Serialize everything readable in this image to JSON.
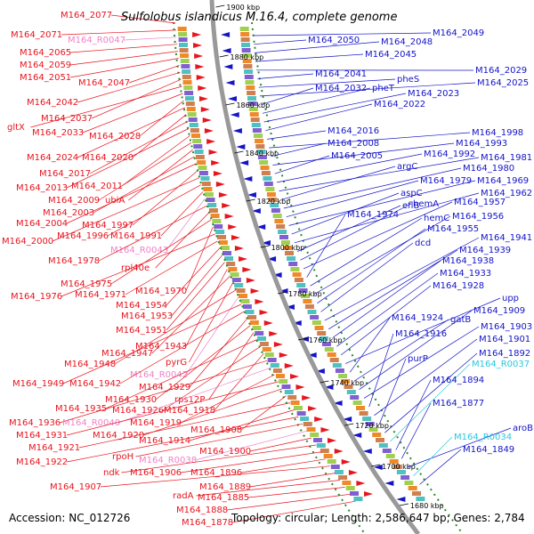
{
  "title": "Sulfolobus islandicus M.16.4, complete genome",
  "footer": {
    "accession": "Accession: NC_012726",
    "stats": "Topology: circular; Length: 2,586,647 bp; Genes: 2,784"
  },
  "colors": {
    "left_gene": "#e8141e",
    "left_rna": "#ee82c8",
    "right_gene": "#1414c8",
    "right_rna": "#28c8dc",
    "backbone": "#999999",
    "tick": "#2a8a2a"
  },
  "ticks": [
    "1900 kbp",
    "1880 kbp",
    "1860 kbp",
    "1840 kbp",
    "1820 kbp",
    "1800 kbp",
    "1780 kbp",
    "1760 kbp",
    "1740 kbp",
    "1720 kbp",
    "1700 kbp",
    "1680 kbp"
  ],
  "left_labels": [
    {
      "t": "M164_2077",
      "k": "g"
    },
    {
      "t": "M164_2071",
      "k": "g"
    },
    {
      "t": "M164_R0047",
      "k": "r"
    },
    {
      "t": "M164_2065",
      "k": "g"
    },
    {
      "t": "M164_2059",
      "k": "g"
    },
    {
      "t": "M164_2051",
      "k": "g"
    },
    {
      "t": "M164_2047",
      "k": "g"
    },
    {
      "t": "M164_2042",
      "k": "g"
    },
    {
      "t": "M164_2037",
      "k": "g"
    },
    {
      "t": "gltX",
      "k": "g"
    },
    {
      "t": "M164_2033",
      "k": "g"
    },
    {
      "t": "M164_2028",
      "k": "g"
    },
    {
      "t": "M164_2024",
      "k": "g"
    },
    {
      "t": "M164_2020",
      "k": "g"
    },
    {
      "t": "M164_2017",
      "k": "g"
    },
    {
      "t": "M164_2013",
      "k": "g"
    },
    {
      "t": "M164_2011",
      "k": "g"
    },
    {
      "t": "M164_2009",
      "k": "g"
    },
    {
      "t": "ubiA",
      "k": "g"
    },
    {
      "t": "M164_2003",
      "k": "g"
    },
    {
      "t": "M164_2004",
      "k": "g"
    },
    {
      "t": "M164_1997",
      "k": "g"
    },
    {
      "t": "M164_2000",
      "k": "g"
    },
    {
      "t": "M164_1996",
      "k": "g"
    },
    {
      "t": "M164_1991",
      "k": "g"
    },
    {
      "t": "M164_R0043",
      "k": "r"
    },
    {
      "t": "M164_1978",
      "k": "g"
    },
    {
      "t": "rpl40e",
      "k": "g"
    },
    {
      "t": "M164_1975",
      "k": "g"
    },
    {
      "t": "M164_1970",
      "k": "g"
    },
    {
      "t": "M164_1976",
      "k": "g"
    },
    {
      "t": "M164_1971",
      "k": "g"
    },
    {
      "t": "M164_1954",
      "k": "g"
    },
    {
      "t": "M164_1953",
      "k": "g"
    },
    {
      "t": "M164_1951",
      "k": "g"
    },
    {
      "t": "M164_1943",
      "k": "g"
    },
    {
      "t": "M164_1947",
      "k": "g"
    },
    {
      "t": "pyrG",
      "k": "g"
    },
    {
      "t": "M164_1948",
      "k": "g"
    },
    {
      "t": "M164_R0042",
      "k": "r"
    },
    {
      "t": "M164_1949",
      "k": "g"
    },
    {
      "t": "M164_1942",
      "k": "g"
    },
    {
      "t": "M164_1929",
      "k": "g"
    },
    {
      "t": "M164_1930",
      "k": "g"
    },
    {
      "t": "rps12P",
      "k": "g"
    },
    {
      "t": "M164_1935",
      "k": "g"
    },
    {
      "t": "M164_1926",
      "k": "g"
    },
    {
      "t": "M164_1918",
      "k": "g"
    },
    {
      "t": "M164_1936",
      "k": "g"
    },
    {
      "t": "M164_R0040",
      "k": "r"
    },
    {
      "t": "M164_1919",
      "k": "g"
    },
    {
      "t": "M164_1931",
      "k": "g"
    },
    {
      "t": "M164_1920",
      "k": "g"
    },
    {
      "t": "M164_1908",
      "k": "g"
    },
    {
      "t": "M164_1921",
      "k": "g"
    },
    {
      "t": "M164_1914",
      "k": "g"
    },
    {
      "t": "M164_1922",
      "k": "g"
    },
    {
      "t": "rpoH",
      "k": "g"
    },
    {
      "t": "M164_R0038",
      "k": "r"
    },
    {
      "t": "M164_1900",
      "k": "g"
    },
    {
      "t": "ndk",
      "k": "g"
    },
    {
      "t": "M164_1906",
      "k": "g"
    },
    {
      "t": "M164_1896",
      "k": "g"
    },
    {
      "t": "M164_1907",
      "k": "g"
    },
    {
      "t": "M164_1889",
      "k": "g"
    },
    {
      "t": "radA",
      "k": "g"
    },
    {
      "t": "M164_1885",
      "k": "g"
    },
    {
      "t": "M164_1888",
      "k": "g"
    },
    {
      "t": "M164_1878",
      "k": "g"
    }
  ],
  "right_labels": [
    {
      "t": "M164_2049",
      "k": "g"
    },
    {
      "t": "M164_2050",
      "k": "g"
    },
    {
      "t": "M164_2048",
      "k": "g"
    },
    {
      "t": "M164_2045",
      "k": "g"
    },
    {
      "t": "M164_2029",
      "k": "g"
    },
    {
      "t": "M164_2041",
      "k": "g"
    },
    {
      "t": "pheS",
      "k": "g"
    },
    {
      "t": "M164_2025",
      "k": "g"
    },
    {
      "t": "M164_2032",
      "k": "g"
    },
    {
      "t": "pheT",
      "k": "g"
    },
    {
      "t": "M164_2023",
      "k": "g"
    },
    {
      "t": "M164_2022",
      "k": "g"
    },
    {
      "t": "M164_2016",
      "k": "g"
    },
    {
      "t": "M164_1998",
      "k": "g"
    },
    {
      "t": "M164_2008",
      "k": "g"
    },
    {
      "t": "M164_1993",
      "k": "g"
    },
    {
      "t": "M164_2005",
      "k": "g"
    },
    {
      "t": "M164_1992",
      "k": "g"
    },
    {
      "t": "M164_1981",
      "k": "g"
    },
    {
      "t": "argC",
      "k": "g"
    },
    {
      "t": "M164_1980",
      "k": "g"
    },
    {
      "t": "M164_1979",
      "k": "g"
    },
    {
      "t": "M164_1969",
      "k": "g"
    },
    {
      "t": "aspC",
      "k": "g"
    },
    {
      "t": "M164_1962",
      "k": "g"
    },
    {
      "t": "eflB",
      "k": "g"
    },
    {
      "t": "hemA",
      "k": "g"
    },
    {
      "t": "M164_1957",
      "k": "g"
    },
    {
      "t": "M164_1974",
      "k": "g"
    },
    {
      "t": "hemC",
      "k": "g"
    },
    {
      "t": "M164_1956",
      "k": "g"
    },
    {
      "t": "M164_1955",
      "k": "g"
    },
    {
      "t": "dcd",
      "k": "g"
    },
    {
      "t": "M164_1941",
      "k": "g"
    },
    {
      "t": "M164_1939",
      "k": "g"
    },
    {
      "t": "M164_1938",
      "k": "g"
    },
    {
      "t": "M164_1933",
      "k": "g"
    },
    {
      "t": "M164_1928",
      "k": "g"
    },
    {
      "t": "upp",
      "k": "g"
    },
    {
      "t": "M164_1924",
      "k": "g"
    },
    {
      "t": "gatB",
      "k": "g"
    },
    {
      "t": "M164_1909",
      "k": "g"
    },
    {
      "t": "M164_1903",
      "k": "g"
    },
    {
      "t": "M164_1916",
      "k": "g"
    },
    {
      "t": "M164_1901",
      "k": "g"
    },
    {
      "t": "purP",
      "k": "g"
    },
    {
      "t": "M164_1892",
      "k": "g"
    },
    {
      "t": "M164_R0037",
      "k": "r"
    },
    {
      "t": "M164_1894",
      "k": "g"
    },
    {
      "t": "M164_1877",
      "k": "g"
    },
    {
      "t": "aroB",
      "k": "g"
    },
    {
      "t": "M164_R0034",
      "k": "r"
    },
    {
      "t": "M164_1849",
      "k": "g"
    }
  ]
}
